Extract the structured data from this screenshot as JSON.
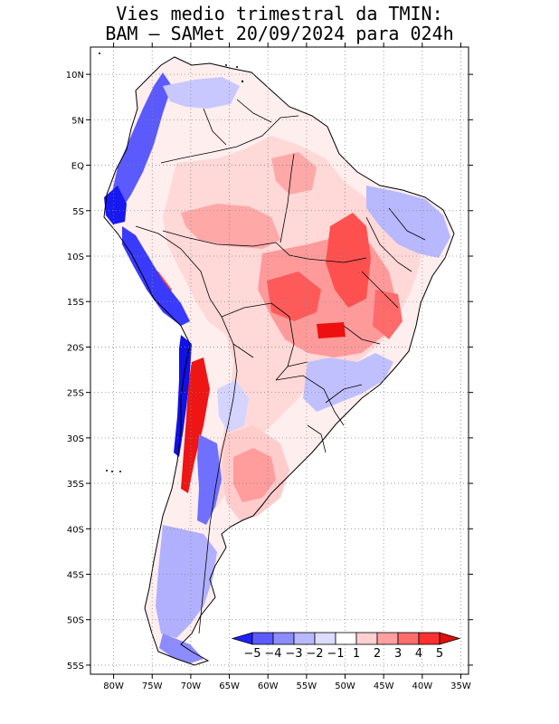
{
  "title_line1": "Vies medio trimestral da TMIN:",
  "title_line2": "BAM – SAMet 20/09/2024  para 024h",
  "map_bounds": {
    "lon_min": -83,
    "lon_max": -34,
    "lat_min": -56,
    "lat_max": 13
  },
  "lon_ticks": [
    {
      "v": -80,
      "label": "80W"
    },
    {
      "v": -75,
      "label": "75W"
    },
    {
      "v": -70,
      "label": "70W"
    },
    {
      "v": -65,
      "label": "65W"
    },
    {
      "v": -60,
      "label": "60W"
    },
    {
      "v": -55,
      "label": "55W"
    },
    {
      "v": -50,
      "label": "50W"
    },
    {
      "v": -45,
      "label": "45W"
    },
    {
      "v": -40,
      "label": "40W"
    },
    {
      "v": -35,
      "label": "35W"
    }
  ],
  "lat_ticks": [
    {
      "v": 10,
      "label": "10N"
    },
    {
      "v": 5,
      "label": "5N"
    },
    {
      "v": 0,
      "label": "EQ"
    },
    {
      "v": -5,
      "label": "5S"
    },
    {
      "v": -10,
      "label": "10S"
    },
    {
      "v": -15,
      "label": "15S"
    },
    {
      "v": -20,
      "label": "20S"
    },
    {
      "v": -25,
      "label": "25S"
    },
    {
      "v": -30,
      "label": "30S"
    },
    {
      "v": -35,
      "label": "35S"
    },
    {
      "v": -40,
      "label": "40S"
    },
    {
      "v": -45,
      "label": "45S"
    },
    {
      "v": -50,
      "label": "50S"
    },
    {
      "v": -55,
      "label": "55S"
    }
  ],
  "colorbar": {
    "labels": [
      "−5",
      "−4",
      "−3",
      "−2",
      "−1",
      "1",
      "2",
      "3",
      "4",
      "5"
    ],
    "colors": [
      "#2020ff",
      "#5a5aff",
      "#8c8cff",
      "#b8b8ff",
      "#dcdcff",
      "#ffffff",
      "#ffd0d0",
      "#ffa0a0",
      "#ff6c6c",
      "#ff3030",
      "#e01010"
    ]
  },
  "colors": {
    "strong_blue": "#1818f0",
    "blue": "#5a5aff",
    "light_blue": "#b0b0ff",
    "pale_blue": "#dcdcff",
    "pale_red": "#ffd8d8",
    "light_red": "#ffa8a8",
    "red": "#ff5050",
    "strong_red": "#ee1010"
  }
}
